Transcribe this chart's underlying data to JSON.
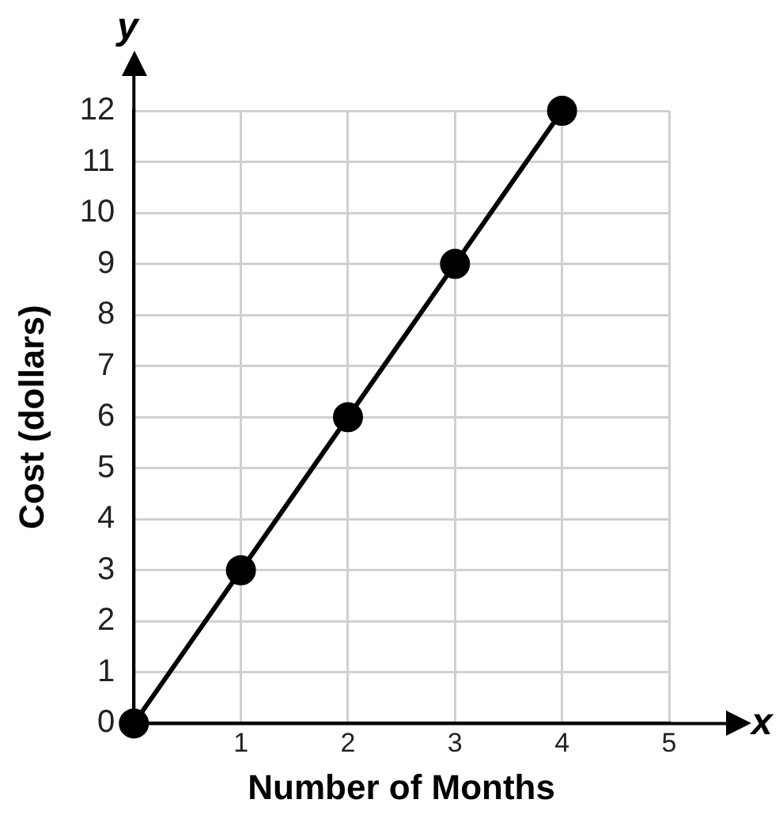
{
  "chart_data": {
    "type": "line",
    "xlabel": "Number of Months",
    "ylabel": "Cost (dollars)",
    "x": [
      0,
      1,
      2,
      3,
      4
    ],
    "series": [
      {
        "color": "#000000",
        "values": [
          0,
          3,
          6,
          9,
          12
        ]
      }
    ],
    "xlim": [
      0,
      5
    ],
    "xticks": [
      1,
      2,
      3,
      4,
      5
    ],
    "ylim": [
      0,
      12
    ],
    "yticks": [
      0,
      1,
      2,
      3,
      4,
      5,
      6,
      7,
      8,
      9,
      10,
      11,
      12
    ],
    "grid": true,
    "legend": false,
    "marker": "circle",
    "line_style": "solid",
    "annotations": [
      "y",
      "x"
    ]
  }
}
